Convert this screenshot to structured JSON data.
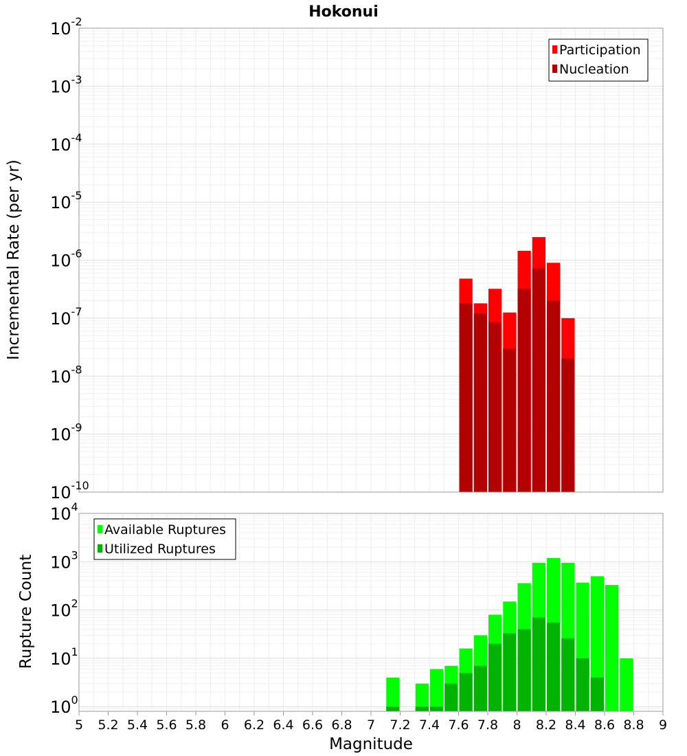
{
  "chart_data": [
    {
      "type": "bar",
      "title": "Hokonui",
      "xlabel": "",
      "ylabel": "Incremental Rate (per yr)",
      "yscale": "log",
      "ylim": [
        1e-10,
        0.01
      ],
      "xlim": [
        5,
        9
      ],
      "y_ticks": [
        {
          "base": "10",
          "exp": "-2"
        },
        {
          "base": "10",
          "exp": "-3"
        },
        {
          "base": "10",
          "exp": "-4"
        },
        {
          "base": "10",
          "exp": "-5"
        },
        {
          "base": "10",
          "exp": "-6"
        },
        {
          "base": "10",
          "exp": "-7"
        },
        {
          "base": "10",
          "exp": "-8"
        },
        {
          "base": "10",
          "exp": "-9"
        },
        {
          "base": "10",
          "exp": "-10"
        }
      ],
      "legend": {
        "position": "top-right",
        "entries": [
          "Participation",
          "Nucleation"
        ]
      },
      "colors": {
        "Participation": "#ff0000",
        "Nucleation": "#b30000"
      },
      "categories": [
        7.65,
        7.75,
        7.85,
        7.95,
        8.05,
        8.15,
        8.25,
        8.35
      ],
      "series": [
        {
          "name": "Participation",
          "values": [
            4.8e-07,
            1.8e-07,
            3.2e-07,
            1.25e-07,
            1.45e-06,
            2.5e-06,
            9e-07,
            1e-07
          ]
        },
        {
          "name": "Nucleation",
          "values": [
            1.8e-07,
            1.2e-07,
            8.5e-08,
            3e-08,
            3.2e-07,
            7.2e-07,
            2e-07,
            2e-08
          ]
        }
      ],
      "grid": true
    },
    {
      "type": "bar",
      "xlabel": "Magnitude",
      "ylabel": "Rupture Count",
      "yscale": "log",
      "ylim": [
        0.8,
        10000
      ],
      "xlim": [
        5,
        9
      ],
      "x_ticks": [
        "5",
        "5.2",
        "5.4",
        "5.6",
        "5.8",
        "6",
        "6.2",
        "6.4",
        "6.6",
        "6.8",
        "7",
        "7.2",
        "7.4",
        "7.6",
        "7.8",
        "8",
        "8.2",
        "8.4",
        "8.6",
        "8.8",
        "9"
      ],
      "y_ticks": [
        {
          "base": "10",
          "exp": "4"
        },
        {
          "base": "10",
          "exp": "3"
        },
        {
          "base": "10",
          "exp": "2"
        },
        {
          "base": "10",
          "exp": "1"
        },
        {
          "base": "10",
          "exp": "0"
        }
      ],
      "legend": {
        "position": "top-left",
        "entries": [
          "Available Ruptures",
          "Utilized Ruptures"
        ]
      },
      "colors": {
        "Available Ruptures": "#00ff00",
        "Utilized Ruptures": "#00b300"
      },
      "categories": [
        7.15,
        7.35,
        7.45,
        7.55,
        7.65,
        7.75,
        7.85,
        7.95,
        8.05,
        8.15,
        8.25,
        8.35,
        8.45,
        8.55,
        8.65,
        8.75
      ],
      "series": [
        {
          "name": "Available Ruptures",
          "values": [
            4,
            3,
            6,
            7,
            16,
            30,
            80,
            150,
            360,
            950,
            1200,
            950,
            370,
            500,
            330,
            10
          ]
        },
        {
          "name": "Utilized Ruptures",
          "values": [
            1,
            1,
            1,
            3,
            5,
            7,
            20,
            33,
            40,
            70,
            55,
            26,
            10,
            4,
            null,
            null
          ]
        }
      ],
      "grid": true
    }
  ]
}
